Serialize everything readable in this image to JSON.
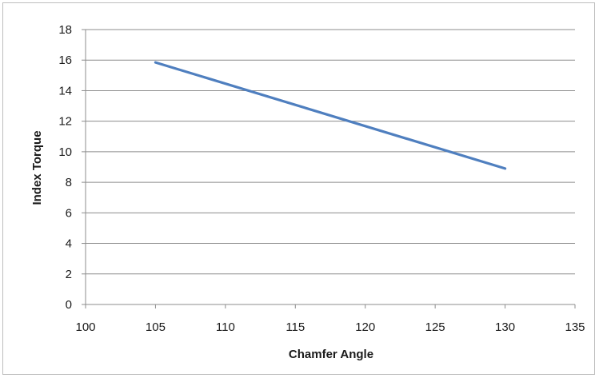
{
  "chart_data": {
    "type": "line",
    "title": "",
    "xlabel": "Chamfer Angle",
    "ylabel": "Index Torque",
    "xlim": [
      100,
      135
    ],
    "ylim": [
      0,
      18
    ],
    "xticks": [
      100,
      105,
      110,
      115,
      120,
      125,
      130,
      135
    ],
    "yticks": [
      0,
      2,
      4,
      6,
      8,
      10,
      12,
      14,
      16,
      18
    ],
    "grid": "horizontal",
    "legend": "none",
    "series": [
      {
        "color": "#4f7fbf",
        "x": [
          105,
          130
        ],
        "y": [
          15.85,
          8.9
        ]
      }
    ]
  }
}
